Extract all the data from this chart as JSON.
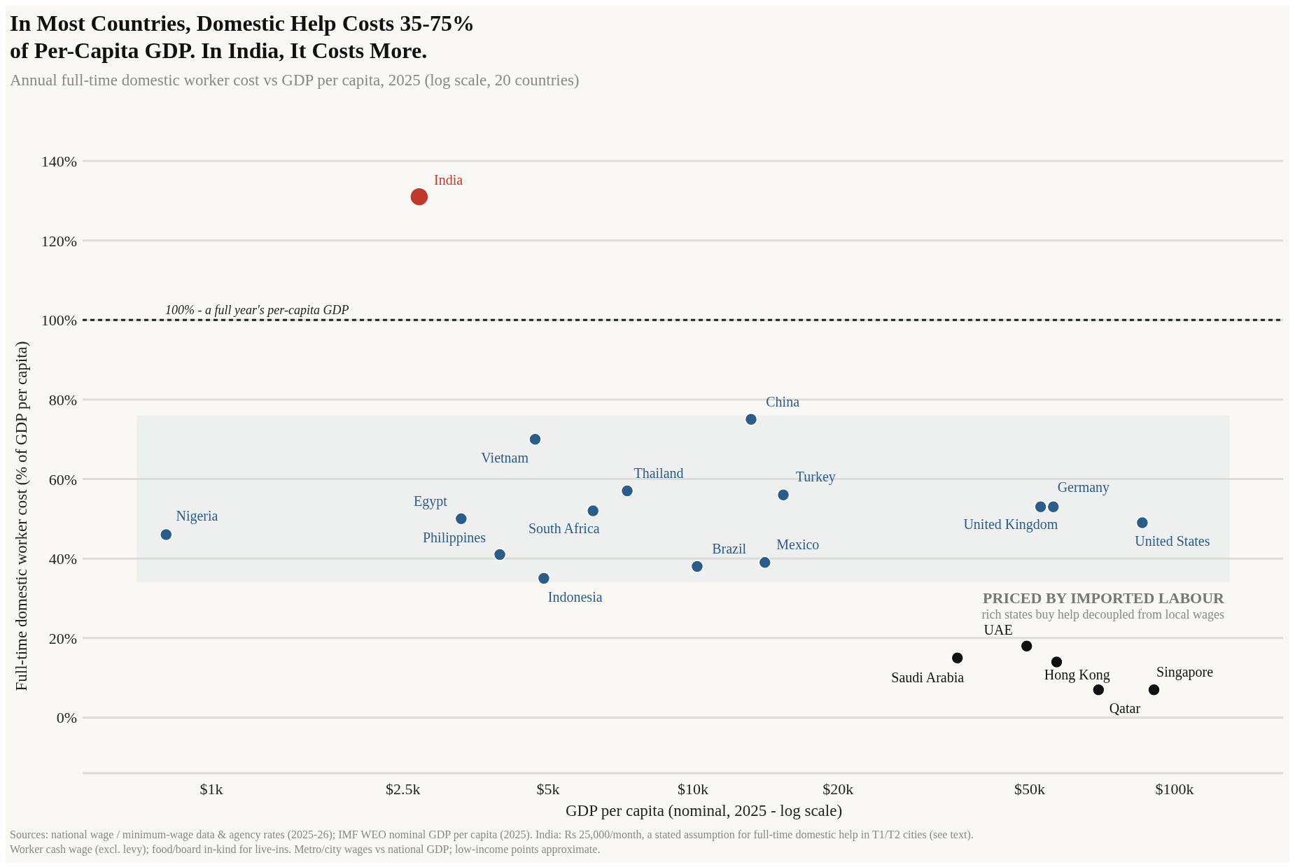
{
  "chart_data": {
    "type": "scatter",
    "title": "In Most Countries, Domestic Help Costs 35-75% of Per-Capita GDP. In India, It Costs More.",
    "subtitle": "Annual full-time domestic worker cost vs GDP per capita, 2025 (log scale, 20 countries)",
    "xlabel": "GDP per capita (nominal, 2025 - log scale)",
    "ylabel": "Full-time domestic worker cost (% of GDP per capita)",
    "log": "x",
    "grid": "y",
    "marker": "circle",
    "xlim": [
      540,
      168000
    ],
    "xticks": [
      {
        "value": 1000,
        "label": "$1k"
      },
      {
        "value": 2500,
        "label": "$2.5k"
      },
      {
        "value": 5000,
        "label": "$5k"
      },
      {
        "value": 10000,
        "label": "$10k"
      },
      {
        "value": 20000,
        "label": "$20k"
      },
      {
        "value": 50000,
        "label": "$50k"
      },
      {
        "value": 100000,
        "label": "$100k"
      }
    ],
    "ylim": [
      -14,
      140
    ],
    "yticks": [
      {
        "value": 0,
        "label": "0%"
      },
      {
        "value": 20,
        "label": "20%"
      },
      {
        "value": 40,
        "label": "40%"
      },
      {
        "value": 60,
        "label": "60%"
      },
      {
        "value": 80,
        "label": "80%"
      },
      {
        "value": 100,
        "label": "100%"
      },
      {
        "value": 120,
        "label": "120%"
      },
      {
        "value": 140,
        "label": "140%"
      }
    ],
    "series": [
      {
        "color": "#c0392b",
        "x": [
          2700
        ],
        "values": [
          131
        ]
      },
      {
        "color": "#2a5d8a",
        "x": [
          805,
          4700,
          3300,
          3970,
          4900,
          6200,
          7300,
          10200,
          13200,
          14100,
          15400,
          52700,
          56000,
          85700
        ],
        "values": [
          46,
          70,
          50,
          41,
          35,
          52,
          57,
          38,
          75,
          39,
          56,
          53,
          53,
          49
        ]
      },
      {
        "color": "#111111",
        "x": [
          35400,
          49300,
          56900,
          69500,
          90600
        ],
        "values": [
          15,
          18,
          14,
          7,
          7
        ]
      }
    ],
    "ref_lines": [
      {
        "axis": "y",
        "value": 100,
        "label": "100% - a full year's per-capita GDP",
        "color": "#222222",
        "line_style": "dashed"
      }
    ],
    "bands": [
      {
        "axis": "y",
        "from": 34,
        "to": 76,
        "color": "#eeefef"
      }
    ],
    "annotations": [
      {
        "text": "India",
        "x": 2700,
        "y": 131
      },
      {
        "text": "Nigeria",
        "x": 805,
        "y": 46
      },
      {
        "text": "Vietnam",
        "x": 4700,
        "y": 70
      },
      {
        "text": "Egypt",
        "x": 3300,
        "y": 50
      },
      {
        "text": "Philippines",
        "x": 3970,
        "y": 41
      },
      {
        "text": "Indonesia",
        "x": 4900,
        "y": 35
      },
      {
        "text": "South Africa",
        "x": 6200,
        "y": 52
      },
      {
        "text": "Thailand",
        "x": 7300,
        "y": 57
      },
      {
        "text": "Brazil",
        "x": 10200,
        "y": 38
      },
      {
        "text": "China",
        "x": 13200,
        "y": 75
      },
      {
        "text": "Mexico",
        "x": 14100,
        "y": 39
      },
      {
        "text": "Turkey",
        "x": 15400,
        "y": 56
      },
      {
        "text": "United Kingdom",
        "x": 52700,
        "y": 53
      },
      {
        "text": "Germany",
        "x": 56000,
        "y": 53
      },
      {
        "text": "United States",
        "x": 85700,
        "y": 49
      },
      {
        "text": "Saudi Arabia",
        "x": 35400,
        "y": 15
      },
      {
        "text": "UAE",
        "x": 49300,
        "y": 18
      },
      {
        "text": "Hong Kong",
        "x": 56900,
        "y": 14
      },
      {
        "text": "Qatar",
        "x": 69500,
        "y": 7
      },
      {
        "text": "Singapore",
        "x": 90600,
        "y": 7
      },
      "PRICED BY IMPORTED LABOUR",
      "rich states buy help decoupled from local wages",
      "Sources: national wage / minimum-wage data & agency rates (2025-26); IMF WEO nominal GDP per capita (2025). India: Rs 25,000/month, a stated assumption for full-time domestic help in T1/T2 cities (see text).",
      "Worker cash wage (excl. levy); food/board in-kind for live-ins. Metro/city wages vs national GDP; low-income points approximate."
    ]
  }
}
